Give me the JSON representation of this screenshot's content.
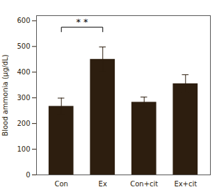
{
  "chart_data": {
    "type": "bar",
    "categories": [
      "Con",
      "Ex",
      "Con+cit",
      "Ex+cit"
    ],
    "values": [
      267,
      450,
      283,
      355
    ],
    "errors": [
      32,
      48,
      20,
      35
    ],
    "color": "#2d1e0f",
    "ylabel": "Blood ammonia (μg/dL)",
    "ylim": [
      0,
      620
    ],
    "yticks": [
      0,
      100,
      200,
      300,
      400,
      500,
      600
    ],
    "grid": false,
    "annotations": [
      {
        "text": "* *",
        "x": [
          "Con",
          "Ex"
        ],
        "y": 575,
        "drop": 18,
        "color": "black"
      }
    ]
  }
}
